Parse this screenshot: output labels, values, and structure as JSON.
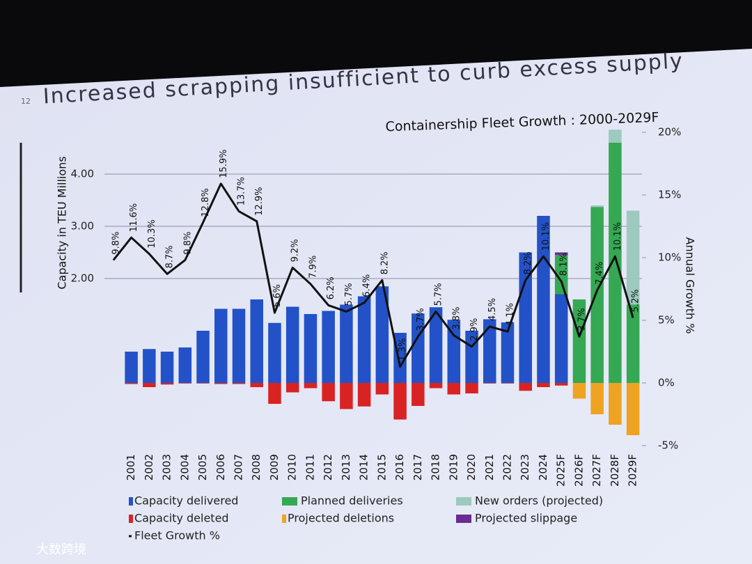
{
  "slide_number": "12",
  "title": "Increased scrapping insufficient to curb excess supply",
  "watermark": "大数跨境",
  "chart_data": {
    "type": "bar",
    "title": "Containership Fleet Growth : 2000-2029F",
    "y_label": "Capacity in TEU Millions",
    "y2_label": "Annual Growth %",
    "categories": [
      null,
      "2001",
      "2002",
      "2003",
      "2004",
      "2005",
      "2006",
      "2007",
      "2008",
      "2009",
      "2010",
      "2011",
      "2012",
      "2013",
      "2014",
      "2015",
      "2016",
      "2017",
      "2018",
      "2019",
      "2020",
      "2021",
      "2022",
      "2023",
      "2024",
      "2025F",
      "2026F",
      "2027F",
      "2028F",
      "2029F"
    ],
    "ylim": [
      -1.2,
      4.8
    ],
    "yticks": [
      {
        "value": 2,
        "label": "2.00"
      },
      {
        "value": 3,
        "label": "3.00"
      },
      {
        "value": 4,
        "label": "4.00"
      }
    ],
    "y2lim": [
      -5,
      20
    ],
    "y2ticks": [
      {
        "value": -5,
        "label": "-5%"
      },
      {
        "value": 0,
        "label": "0%"
      },
      {
        "value": 5,
        "label": "5%"
      },
      {
        "value": 10,
        "label": "10%"
      },
      {
        "value": 15,
        "label": "15%"
      },
      {
        "value": 20,
        "label": "20%"
      }
    ],
    "grid": true,
    "series": [
      {
        "name": "Capacity delivered",
        "color": "#2352c8",
        "stack": "pos",
        "values": [
          null,
          0.6,
          0.65,
          0.6,
          0.68,
          1.0,
          1.42,
          1.42,
          1.6,
          1.15,
          1.46,
          1.32,
          1.38,
          1.5,
          1.66,
          1.85,
          0.96,
          1.33,
          1.45,
          1.21,
          1.0,
          1.22,
          1.16,
          2.5,
          3.2,
          1.7,
          null,
          null,
          null,
          null
        ]
      },
      {
        "name": "Capacity deleted",
        "color": "#d92323",
        "stack": "neg",
        "values": [
          null,
          -0.02,
          -0.08,
          -0.03,
          -0.01,
          -0.01,
          -0.02,
          -0.02,
          -0.08,
          -0.4,
          -0.18,
          -0.1,
          -0.35,
          -0.5,
          -0.45,
          -0.22,
          -0.7,
          -0.44,
          -0.1,
          -0.22,
          -0.2,
          -0.01,
          -0.01,
          -0.15,
          -0.08,
          -0.05,
          null,
          null,
          null,
          null
        ]
      },
      {
        "name": "Fleet Growth %",
        "color": "#111111",
        "axis": "y2",
        "line": true,
        "values": [
          9.8,
          11.6,
          10.3,
          8.7,
          9.8,
          12.8,
          15.9,
          13.7,
          12.9,
          5.6,
          9.2,
          7.9,
          6.2,
          5.7,
          6.4,
          8.2,
          1.3,
          3.7,
          5.7,
          3.8,
          2.9,
          4.5,
          4.1,
          8.2,
          10.1,
          8.1,
          3.7,
          7.4,
          10.1,
          5.2
        ],
        "value_labels": [
          "9.8%",
          "11.6%",
          "10.3%",
          "8.7%",
          "9.8%",
          "12.8%",
          "15.9%",
          "13.7%",
          "12.9%",
          "5.6%",
          "9.2%",
          "7.9%",
          "6.2%",
          "5.7%",
          "6.4%",
          "8.2%",
          "1.3%",
          "3.7%",
          "5.7%",
          "3.8%",
          "2.9%",
          "4.5%",
          "4.1%",
          "8.2%",
          "10.1%",
          "8.1%",
          "3.7%",
          "7.4%",
          "10.1%",
          "5.2%"
        ]
      },
      {
        "name": "Planned deliveries",
        "color": "#35a853",
        "stack": "pos",
        "values": [
          null,
          null,
          null,
          null,
          null,
          null,
          null,
          null,
          null,
          null,
          null,
          null,
          null,
          null,
          null,
          null,
          null,
          null,
          null,
          null,
          null,
          null,
          null,
          null,
          null,
          0.75,
          1.6,
          3.37,
          4.6,
          1.5
        ]
      },
      {
        "name": "Projected deletions",
        "color": "#efa322",
        "stack": "neg",
        "values": [
          null,
          null,
          null,
          null,
          null,
          null,
          null,
          null,
          null,
          null,
          null,
          null,
          null,
          null,
          null,
          null,
          null,
          null,
          null,
          null,
          null,
          null,
          null,
          null,
          null,
          null,
          -0.3,
          -0.6,
          -0.8,
          -1.0
        ]
      },
      {
        "name": "New orders (projected)",
        "color": "#9dc9bf",
        "stack": "pos",
        "values": [
          null,
          null,
          null,
          null,
          null,
          null,
          null,
          null,
          null,
          null,
          null,
          null,
          null,
          null,
          null,
          null,
          null,
          null,
          null,
          null,
          null,
          null,
          null,
          null,
          null,
          null,
          null,
          0.03,
          0.25,
          1.8
        ]
      },
      {
        "name": "Projected slippage",
        "color": "#6a2c91",
        "stack": "pos",
        "values": [
          null,
          null,
          null,
          null,
          null,
          null,
          null,
          null,
          null,
          null,
          null,
          null,
          null,
          null,
          null,
          null,
          null,
          null,
          null,
          null,
          null,
          null,
          null,
          null,
          null,
          0.05,
          null,
          null,
          null,
          null
        ]
      }
    ]
  }
}
